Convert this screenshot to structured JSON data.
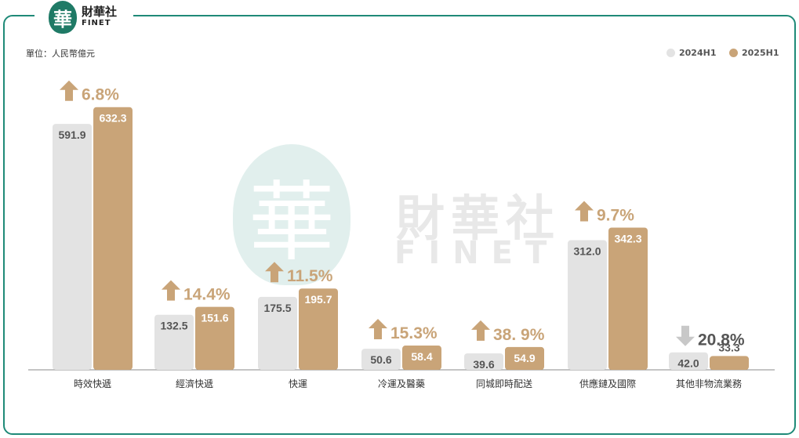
{
  "logo": {
    "mark": "華",
    "cn": "財華社",
    "en": "FINET"
  },
  "unit_label": "單位：人民幣億元",
  "colors": {
    "series_2024": "#e3e3e3",
    "series_2025": "#c9a478",
    "growth_up": "#c9a478",
    "growth_down": "#c8c8c8",
    "growth_down_text": "#555555",
    "frame": "#1f8a78"
  },
  "chart_data": {
    "type": "bar",
    "title": "",
    "xlabel": "",
    "ylabel": "",
    "ylim": [
      0,
      660
    ],
    "grid": false,
    "legend_position": "top-right",
    "categories": [
      "時效快遞",
      "經濟快遞",
      "快運",
      "冷運及醫藥",
      "同城即時配送",
      "供應鏈及國際",
      "其他非物流業務"
    ],
    "series": [
      {
        "name": "2024H1",
        "values": [
          591.9,
          132.5,
          175.5,
          50.6,
          39.6,
          312.0,
          42.0
        ],
        "labels": [
          "591.9",
          "132.5",
          "175.5",
          "50.6",
          "39.6",
          "312.0",
          "42.0"
        ]
      },
      {
        "name": "2025H1",
        "values": [
          632.3,
          151.6,
          195.7,
          58.4,
          54.9,
          342.3,
          33.3
        ],
        "labels": [
          "632.3",
          "151.6",
          "195.7",
          "58.4",
          "54.9",
          "342.3",
          "33.3"
        ]
      }
    ],
    "growth": [
      {
        "direction": "up",
        "label": "6.8%"
      },
      {
        "direction": "up",
        "label": "14.4%"
      },
      {
        "direction": "up",
        "label": "11.5%"
      },
      {
        "direction": "up",
        "label": "15.3%"
      },
      {
        "direction": "up",
        "label": "38. 9%"
      },
      {
        "direction": "up",
        "label": "9.7%"
      },
      {
        "direction": "down",
        "label": "20.8%"
      }
    ]
  }
}
